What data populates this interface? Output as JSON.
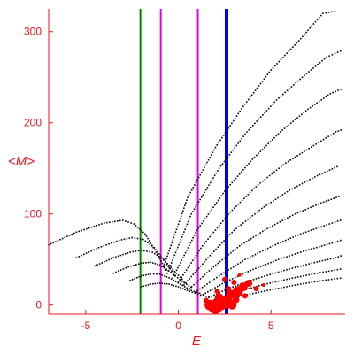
{
  "chart_data": {
    "type": "scatter",
    "title": "",
    "xlabel": "E",
    "ylabel": "<M>",
    "xlim": [
      -7,
      9
    ],
    "ylim": [
      -10,
      325
    ],
    "xticks": [
      -5,
      0,
      5
    ],
    "yticks": [
      0,
      100,
      200,
      300
    ],
    "grid": false,
    "colors": {
      "axes": "#e8141e",
      "points": "#000000",
      "highlight": "#ff0000",
      "green_line": "#008000",
      "magenta_lines": "#e000e0",
      "blue_line": "#0000ee"
    },
    "vertical_lines": [
      {
        "x": -2.05,
        "color": "#008000",
        "width": 2
      },
      {
        "x": -0.95,
        "color": "#e000e0",
        "width": 2
      },
      {
        "x": 1.05,
        "color": "#e000e0",
        "width": 2
      },
      {
        "x": 2.6,
        "color": "#0000ee",
        "width": 4
      }
    ],
    "curve_families": [
      {
        "x": [
          -7.0,
          -5.5,
          -4.0,
          -3.0,
          -2.4,
          -1.8,
          -1.2,
          -0.6
        ],
        "y": [
          66,
          80,
          90,
          93,
          89,
          78,
          58,
          36
        ]
      },
      {
        "x": [
          -5.5,
          -4.3,
          -3.2,
          -2.5,
          -1.9,
          -1.3,
          -0.7,
          -0.1
        ],
        "y": [
          52,
          63,
          71,
          74,
          72,
          63,
          47,
          30
        ]
      },
      {
        "x": [
          -4.5,
          -3.5,
          -2.6,
          -2.0,
          -1.4,
          -0.8,
          -0.2,
          0.4
        ],
        "y": [
          43,
          52,
          58,
          60,
          58,
          50,
          37,
          24
        ]
      },
      {
        "x": [
          -3.5,
          -2.7,
          -2.0,
          -1.5,
          -1.0,
          -0.4,
          0.2,
          0.8
        ],
        "y": [
          35,
          42,
          46,
          47,
          44,
          36,
          26,
          18
        ]
      },
      {
        "x": [
          -2.6,
          -2.0,
          -1.5,
          -1.0,
          -0.5,
          0.1,
          0.7,
          1.3
        ],
        "y": [
          27,
          32,
          34,
          34,
          30,
          23,
          16,
          12
        ]
      },
      {
        "x": [
          -2.0,
          -1.5,
          -1.0,
          -0.5,
          0.0,
          0.6,
          1.2,
          1.8
        ],
        "y": [
          20,
          23,
          24,
          23,
          20,
          15,
          11,
          8
        ]
      }
    ],
    "fan_lines": [
      {
        "x": [
          -0.8,
          0.5,
          2.0,
          3.5,
          5.0,
          6.5,
          7.8,
          8.6
        ],
        "y": [
          42,
          118,
          173,
          218,
          258,
          290,
          320,
          323
        ]
      },
      {
        "x": [
          -0.6,
          0.7,
          2.2,
          3.7,
          5.3,
          6.8,
          8.0,
          8.9
        ],
        "y": [
          35,
          100,
          150,
          190,
          225,
          252,
          272,
          280
        ]
      },
      {
        "x": [
          -0.3,
          1.0,
          2.5,
          4.0,
          5.5,
          7.0,
          8.2,
          8.9
        ],
        "y": [
          30,
          82,
          125,
          160,
          190,
          215,
          232,
          238
        ]
      },
      {
        "x": [
          0.0,
          1.3,
          2.8,
          4.3,
          5.8,
          7.3,
          8.5,
          8.9
        ],
        "y": [
          25,
          65,
          102,
          132,
          156,
          175,
          190,
          193
        ]
      },
      {
        "x": [
          0.3,
          1.6,
          3.0,
          4.5,
          6.0,
          7.5,
          8.7
        ],
        "y": [
          22,
          52,
          82,
          106,
          126,
          142,
          153
        ]
      },
      {
        "x": [
          0.6,
          1.9,
          3.3,
          4.8,
          6.3,
          7.7,
          8.8
        ],
        "y": [
          18,
          42,
          65,
          84,
          100,
          112,
          120
        ]
      },
      {
        "x": [
          0.9,
          2.2,
          3.6,
          5.1,
          6.6,
          8.0,
          8.9
        ],
        "y": [
          14,
          32,
          50,
          65,
          78,
          88,
          94
        ]
      },
      {
        "x": [
          1.2,
          2.5,
          3.9,
          5.4,
          6.9,
          8.3,
          8.9
        ],
        "y": [
          10,
          25,
          38,
          50,
          60,
          68,
          72
        ]
      },
      {
        "x": [
          1.5,
          2.8,
          4.2,
          5.7,
          7.2,
          8.5,
          8.9
        ],
        "y": [
          7,
          19,
          29,
          38,
          46,
          52,
          55
        ]
      },
      {
        "x": [
          1.8,
          3.1,
          4.5,
          6.0,
          7.5,
          8.9
        ],
        "y": [
          5,
          14,
          22,
          29,
          35,
          40
        ]
      },
      {
        "x": [
          2.1,
          3.4,
          4.8,
          6.3,
          7.8,
          8.9
        ],
        "y": [
          3,
          10,
          16,
          22,
          27,
          30
        ]
      }
    ],
    "highlight_points": [
      {
        "x": 1.7,
        "y": 0,
        "r": 6
      },
      {
        "x": 2.0,
        "y": -2,
        "r": 8
      },
      {
        "x": 2.3,
        "y": 1,
        "r": 7
      },
      {
        "x": 2.6,
        "y": 3,
        "r": 7
      },
      {
        "x": 2.9,
        "y": 0,
        "r": 5
      },
      {
        "x": 2.2,
        "y": 8,
        "r": 5
      },
      {
        "x": 2.8,
        "y": 12,
        "r": 5
      },
      {
        "x": 3.2,
        "y": 15,
        "r": 6
      },
      {
        "x": 3.5,
        "y": 20,
        "r": 5
      },
      {
        "x": 3.8,
        "y": 24,
        "r": 4
      },
      {
        "x": 3.0,
        "y": 25,
        "r": 3
      },
      {
        "x": 2.5,
        "y": 28,
        "r": 3
      },
      {
        "x": 3.3,
        "y": 33,
        "r": 2
      },
      {
        "x": 4.2,
        "y": 18,
        "r": 3
      },
      {
        "x": 4.6,
        "y": 22,
        "r": 2
      },
      {
        "x": 1.5,
        "y": 5,
        "r": 3
      },
      {
        "x": 2.1,
        "y": 15,
        "r": 3
      },
      {
        "x": 3.1,
        "y": 6,
        "r": 4
      },
      {
        "x": 3.6,
        "y": 10,
        "r": 3
      },
      {
        "x": 2.7,
        "y": 18,
        "r": 3
      }
    ]
  }
}
